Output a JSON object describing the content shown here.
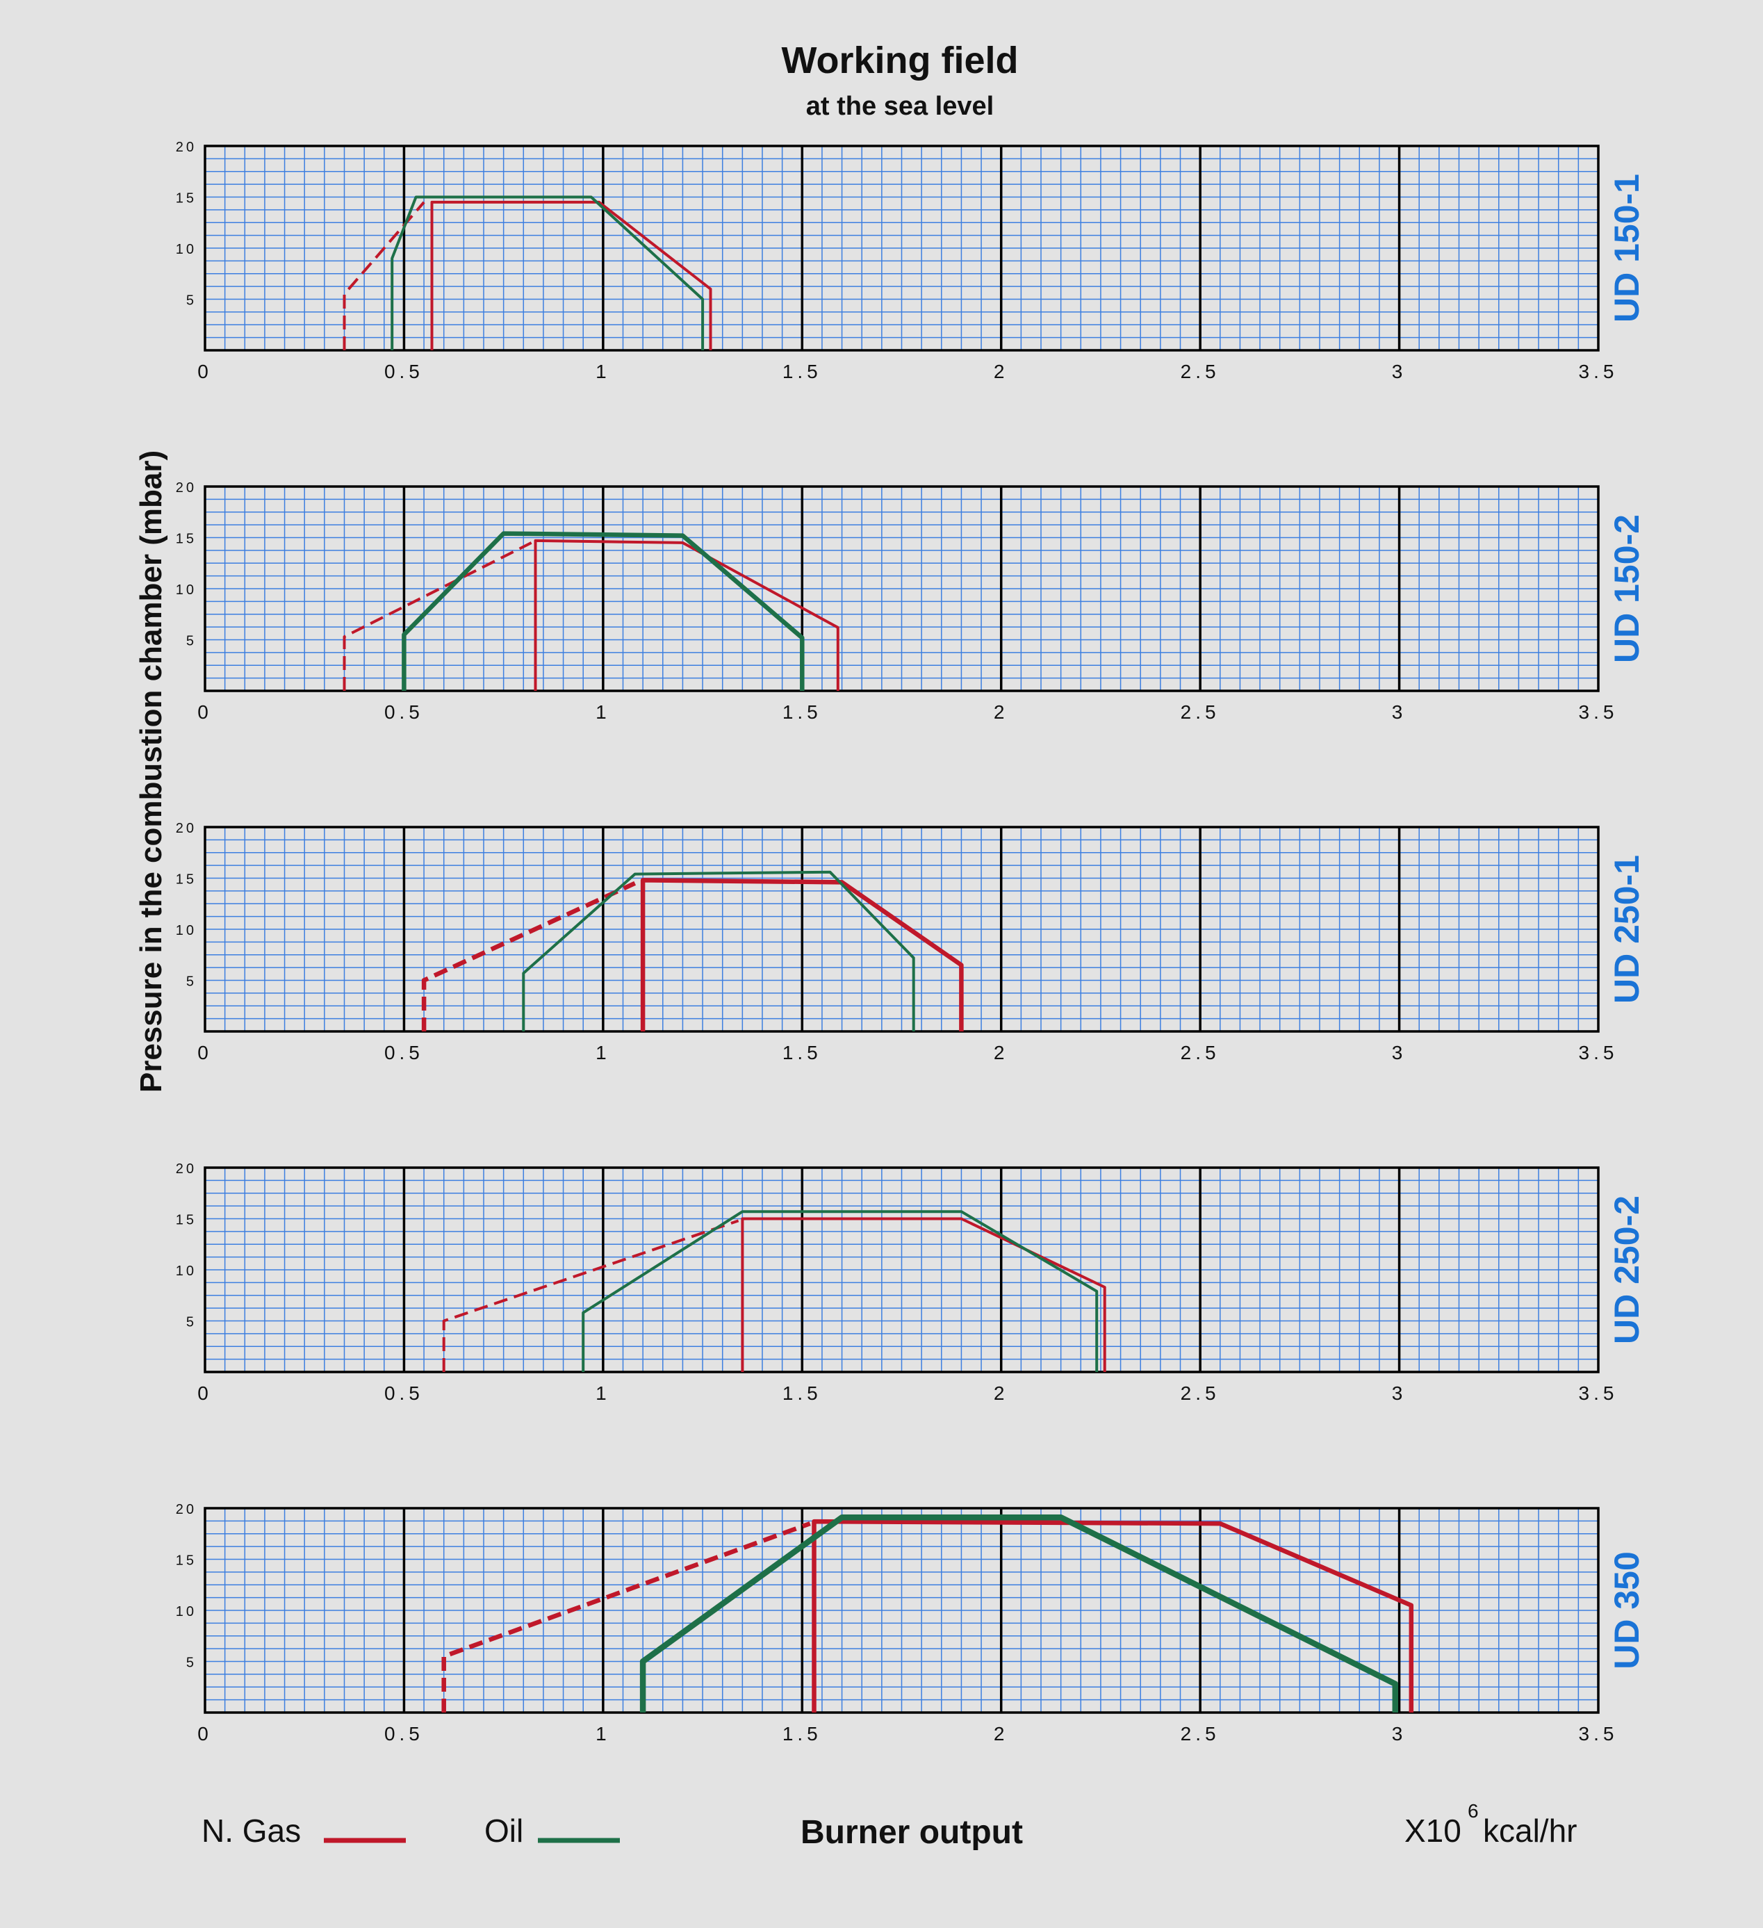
{
  "title": "Working field",
  "subtitle": "at the sea level",
  "ylabel": "Pressure in the combustion chamber (mbar)",
  "xlabel": "Burner output",
  "unit": {
    "base": "X10",
    "exp": "6",
    "rest": "kcal/hr"
  },
  "legend": {
    "gas_label": "N. Gas",
    "oil_label": "Oil"
  },
  "colors": {
    "gas": "#c0182a",
    "oil": "#1e7048",
    "grid_minor": "#3d7fe0",
    "grid_major": "#000000",
    "model_label": "#1a73d6",
    "background": "#e3e3e3"
  },
  "chart_data": [
    {
      "type": "line",
      "panel_label": "UD 150-1",
      "xlim": [
        0,
        3.5
      ],
      "ylim": [
        0,
        20
      ],
      "x_ticks": [
        "0",
        "0.5",
        "1",
        "1.5",
        "2",
        "2.5",
        "3",
        "3.5"
      ],
      "y_ticks": [
        "5",
        "10",
        "15",
        "20"
      ],
      "grid": true,
      "series": [
        {
          "name": "N. Gas",
          "style": "dashed",
          "width": "medium",
          "points": [
            [
              0.35,
              0
            ],
            [
              0.35,
              5.5
            ],
            [
              0.55,
              14.5
            ]
          ]
        },
        {
          "name": "N. Gas",
          "style": "solid",
          "width": "medium",
          "points": [
            [
              0.57,
              0
            ],
            [
              0.57,
              14.5
            ],
            [
              0.99,
              14.5
            ],
            [
              1.27,
              6
            ],
            [
              1.27,
              0
            ]
          ]
        },
        {
          "name": "Oil",
          "style": "solid",
          "width": "medium",
          "points": [
            [
              0.47,
              0
            ],
            [
              0.47,
              9
            ],
            [
              0.53,
              15
            ],
            [
              0.97,
              15
            ],
            [
              1.25,
              5
            ],
            [
              1.25,
              0
            ]
          ]
        }
      ]
    },
    {
      "type": "line",
      "panel_label": "UD 150-2",
      "xlim": [
        0,
        3.5
      ],
      "ylim": [
        0,
        20
      ],
      "x_ticks": [
        "0",
        "0.5",
        "1",
        "1.5",
        "2",
        "2.5",
        "3",
        "3.5"
      ],
      "y_ticks": [
        "5",
        "10",
        "15",
        "20"
      ],
      "grid": true,
      "series": [
        {
          "name": "N. Gas",
          "style": "dashed",
          "width": "medium",
          "points": [
            [
              0.35,
              0
            ],
            [
              0.35,
              5.3
            ],
            [
              0.82,
              14.5
            ]
          ]
        },
        {
          "name": "N. Gas",
          "style": "solid",
          "width": "medium",
          "points": [
            [
              0.83,
              0
            ],
            [
              0.83,
              14.7
            ],
            [
              1.2,
              14.5
            ],
            [
              1.59,
              6.2
            ],
            [
              1.59,
              0
            ]
          ]
        },
        {
          "name": "Oil",
          "style": "solid",
          "width": "thick",
          "points": [
            [
              0.5,
              0
            ],
            [
              0.5,
              5.5
            ],
            [
              0.75,
              15.4
            ],
            [
              1.2,
              15.2
            ],
            [
              1.5,
              5.2
            ],
            [
              1.5,
              0
            ]
          ]
        }
      ]
    },
    {
      "type": "line",
      "panel_label": "UD 250-1",
      "xlim": [
        0,
        3.5
      ],
      "ylim": [
        0,
        20
      ],
      "x_ticks": [
        "0",
        "0.5",
        "1",
        "1.5",
        "2",
        "2.5",
        "3",
        "3.5"
      ],
      "y_ticks": [
        "5",
        "10",
        "15",
        "20"
      ],
      "grid": true,
      "series": [
        {
          "name": "N. Gas",
          "style": "dashed",
          "width": "thick",
          "points": [
            [
              0.55,
              0
            ],
            [
              0.55,
              5
            ],
            [
              1.08,
              14.5
            ]
          ]
        },
        {
          "name": "N. Gas",
          "style": "solid",
          "width": "thick",
          "points": [
            [
              1.1,
              0
            ],
            [
              1.1,
              14.8
            ],
            [
              1.6,
              14.6
            ],
            [
              1.9,
              6.5
            ],
            [
              1.9,
              0
            ]
          ]
        },
        {
          "name": "Oil",
          "style": "solid",
          "width": "medium",
          "points": [
            [
              0.8,
              0
            ],
            [
              0.8,
              5.7
            ],
            [
              1.08,
              15.4
            ],
            [
              1.57,
              15.6
            ],
            [
              1.78,
              7.2
            ],
            [
              1.78,
              0
            ]
          ]
        }
      ]
    },
    {
      "type": "line",
      "panel_label": "UD 250-2",
      "xlim": [
        0,
        3.5
      ],
      "ylim": [
        0,
        20
      ],
      "x_ticks": [
        "0",
        "0.5",
        "1",
        "1.5",
        "2",
        "2.5",
        "3",
        "3.5"
      ],
      "y_ticks": [
        "5",
        "10",
        "15",
        "20"
      ],
      "grid": true,
      "series": [
        {
          "name": "N. Gas",
          "style": "dashed",
          "width": "medium",
          "points": [
            [
              0.6,
              0
            ],
            [
              0.6,
              5
            ],
            [
              1.34,
              14.8
            ]
          ]
        },
        {
          "name": "N. Gas",
          "style": "solid",
          "width": "medium",
          "points": [
            [
              1.35,
              0
            ],
            [
              1.35,
              15
            ],
            [
              1.9,
              15
            ],
            [
              2.26,
              8.3
            ],
            [
              2.26,
              0
            ]
          ]
        },
        {
          "name": "Oil",
          "style": "solid",
          "width": "medium",
          "points": [
            [
              0.95,
              0
            ],
            [
              0.95,
              5.8
            ],
            [
              1.35,
              15.7
            ],
            [
              1.9,
              15.7
            ],
            [
              2.24,
              7.9
            ],
            [
              2.24,
              0
            ]
          ]
        }
      ]
    },
    {
      "type": "line",
      "panel_label": "UD 350",
      "xlim": [
        0,
        3.5
      ],
      "ylim": [
        0,
        20
      ],
      "x_ticks": [
        "0",
        "0.5",
        "1",
        "1.5",
        "2",
        "2.5",
        "3",
        "3.5"
      ],
      "y_ticks": [
        "5",
        "10",
        "15",
        "20"
      ],
      "grid": true,
      "series": [
        {
          "name": "N. Gas",
          "style": "dashed",
          "width": "thick",
          "points": [
            [
              0.6,
              0
            ],
            [
              0.6,
              5.5
            ],
            [
              1.52,
              18.5
            ]
          ]
        },
        {
          "name": "N. Gas",
          "style": "solid",
          "width": "thick",
          "points": [
            [
              1.53,
              0
            ],
            [
              1.53,
              18.7
            ],
            [
              2.55,
              18.5
            ],
            [
              3.03,
              10.5
            ],
            [
              3.03,
              0
            ]
          ]
        },
        {
          "name": "Oil",
          "style": "solid",
          "width": "extra",
          "points": [
            [
              1.1,
              0
            ],
            [
              1.1,
              5
            ],
            [
              1.6,
              19.1
            ],
            [
              2.15,
              19.1
            ],
            [
              2.99,
              2.8
            ],
            [
              2.99,
              0
            ]
          ]
        }
      ]
    }
  ]
}
